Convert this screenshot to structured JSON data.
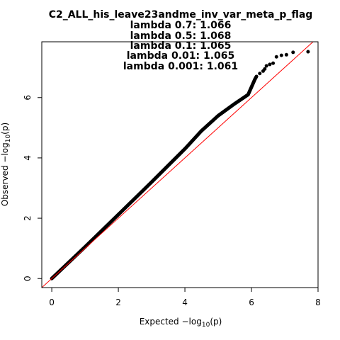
{
  "chart_data": {
    "type": "scatter",
    "title": "C2_ALL_his_leave23andme_inv_var_meta_p_flag",
    "subtitles": [
      "lambda 0.7: 1.066",
      "lambda 0.5: 1.068",
      "lambda 0.1: 1.065",
      "lambda 0.01: 1.065",
      "lambda 0.001: 1.061"
    ],
    "xlabel": {
      "main": "Expected  ",
      "prefix": "−log",
      "sub": "10",
      "suffix": "(p)"
    },
    "ylabel": {
      "main": "Observed  ",
      "prefix": "−log",
      "sub": "10",
      "suffix": "(p)"
    },
    "xlim": [
      -0.3,
      8.0
    ],
    "ylim": [
      -0.3,
      7.85
    ],
    "xticks": [
      "0",
      "2",
      "4",
      "6",
      "8"
    ],
    "yticks": [
      "0",
      "2",
      "4",
      "6"
    ],
    "reference_line": {
      "slope": 1,
      "intercept": 0,
      "color": "#ff0000"
    },
    "point_color": "#000000",
    "curve": [
      [
        0.0,
        0.0
      ],
      [
        1.0,
        1.05
      ],
      [
        2.0,
        2.12
      ],
      [
        3.0,
        3.2
      ],
      [
        4.0,
        4.3
      ],
      [
        4.5,
        4.9
      ],
      [
        5.0,
        5.4
      ],
      [
        5.5,
        5.8
      ],
      [
        5.9,
        6.1
      ],
      [
        6.0,
        6.35
      ],
      [
        6.1,
        6.6
      ],
      [
        6.15,
        6.7
      ]
    ],
    "points": [
      [
        6.25,
        6.8
      ],
      [
        6.35,
        6.88
      ],
      [
        6.4,
        6.95
      ],
      [
        6.45,
        7.05
      ],
      [
        6.55,
        7.1
      ],
      [
        6.65,
        7.14
      ],
      [
        6.75,
        7.35
      ],
      [
        6.9,
        7.4
      ],
      [
        7.05,
        7.42
      ],
      [
        7.25,
        7.5
      ],
      [
        7.7,
        7.52
      ]
    ]
  }
}
